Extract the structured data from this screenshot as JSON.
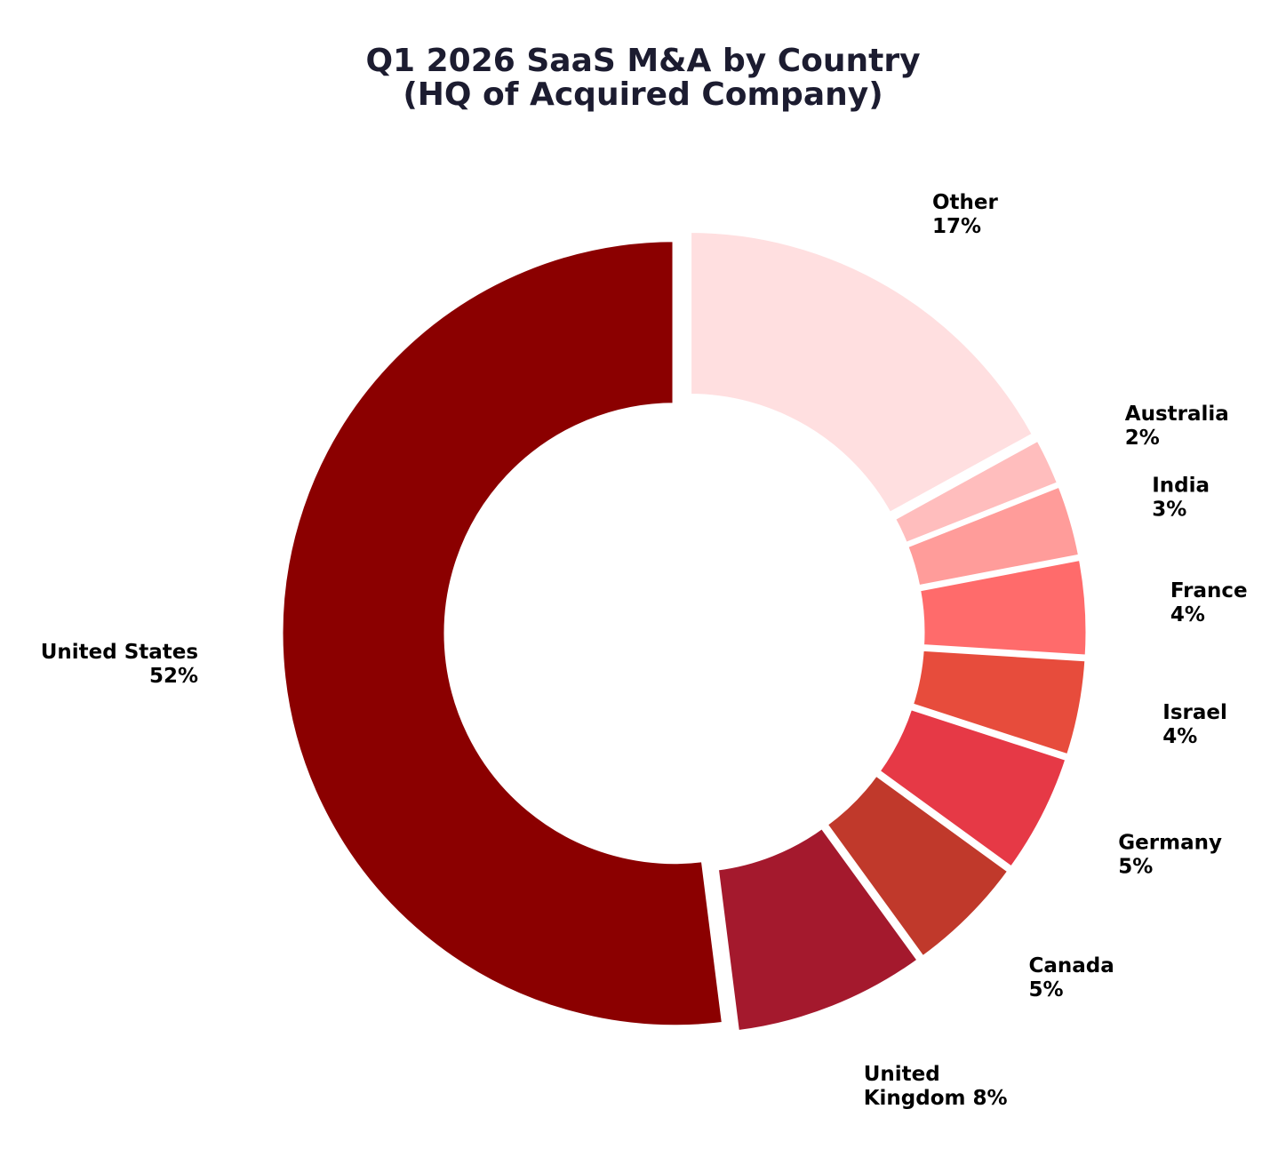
{
  "chart_data": {
    "type": "pie",
    "style": "donut",
    "title": [
      "Q1 2026 SaaS M&A by Country",
      "(HQ of Acquired Company)"
    ],
    "slices": [
      {
        "label": "Other",
        "label_lines": [
          "Other",
          "17%"
        ],
        "value": 17,
        "color": "#ffdfe0"
      },
      {
        "label": "Australia",
        "label_lines": [
          "Australia",
          "2%"
        ],
        "value": 2,
        "color": "#ffbdbd"
      },
      {
        "label": "India",
        "label_lines": [
          "India",
          "3%"
        ],
        "value": 3,
        "color": "#ff9c9a"
      },
      {
        "label": "France",
        "label_lines": [
          "France",
          "4%"
        ],
        "value": 4,
        "color": "#ff6b6b"
      },
      {
        "label": "Israel",
        "label_lines": [
          "Israel",
          "4%"
        ],
        "value": 4,
        "color": "#e74c3c"
      },
      {
        "label": "Germany",
        "label_lines": [
          "Germany",
          "5%"
        ],
        "value": 5,
        "color": "#e63946"
      },
      {
        "label": "Canada",
        "label_lines": [
          "Canada",
          "5%"
        ],
        "value": 5,
        "color": "#c0392b"
      },
      {
        "label": "United Kingdom",
        "label_lines": [
          "United",
          "Kingdom 8%"
        ],
        "value": 8,
        "color": "#a4192d"
      },
      {
        "label": "United States",
        "label_lines": [
          "United States",
          "52%"
        ],
        "value": 52,
        "color": "#8b0000"
      }
    ],
    "start": "top",
    "direction": "clockwise",
    "legend": "none"
  }
}
